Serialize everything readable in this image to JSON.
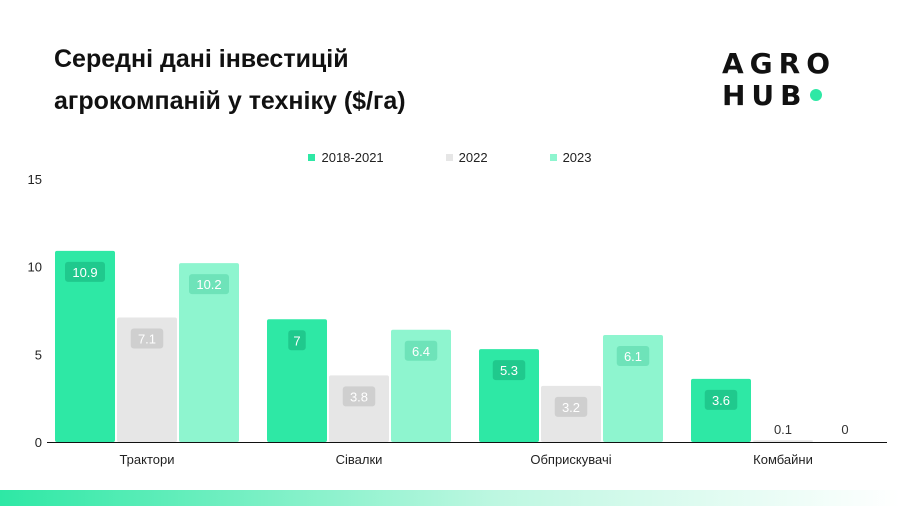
{
  "title_line1": "Середні дані інвестицій",
  "title_line2": "агрокомпаній у техніку ($/га)",
  "logo": {
    "line1": "AGRO",
    "line2": "HUB",
    "accent_color": "#2ee8a5"
  },
  "colors": {
    "series": [
      "#2ee8a5",
      "#e6e6e6",
      "#8ef5cf"
    ],
    "value_label_bg": [
      "#20c98d",
      "#cfcfcf",
      "#6ee3b9"
    ],
    "axis": "#111111"
  },
  "chart_data": {
    "type": "bar",
    "title": "Середні дані інвестицій агрокомпаній у техніку ($/га)",
    "categories": [
      "Трактори",
      "Сівалки",
      "Обприскувачі",
      "Комбайни"
    ],
    "series": [
      {
        "name": "2018-2021",
        "values": [
          10.9,
          7,
          5.3,
          3.6
        ]
      },
      {
        "name": "2022",
        "values": [
          7.1,
          3.8,
          3.2,
          0.1
        ]
      },
      {
        "name": "2023",
        "values": [
          10.2,
          6.4,
          6.1,
          0
        ]
      }
    ],
    "ylim": [
      0,
      15
    ],
    "yticks": [
      0,
      5,
      10,
      15
    ],
    "ytick_labels": [
      "0",
      "5",
      "10",
      "15"
    ],
    "xlabel": "",
    "ylabel": "",
    "legend_position": "top-center",
    "grid": false
  }
}
